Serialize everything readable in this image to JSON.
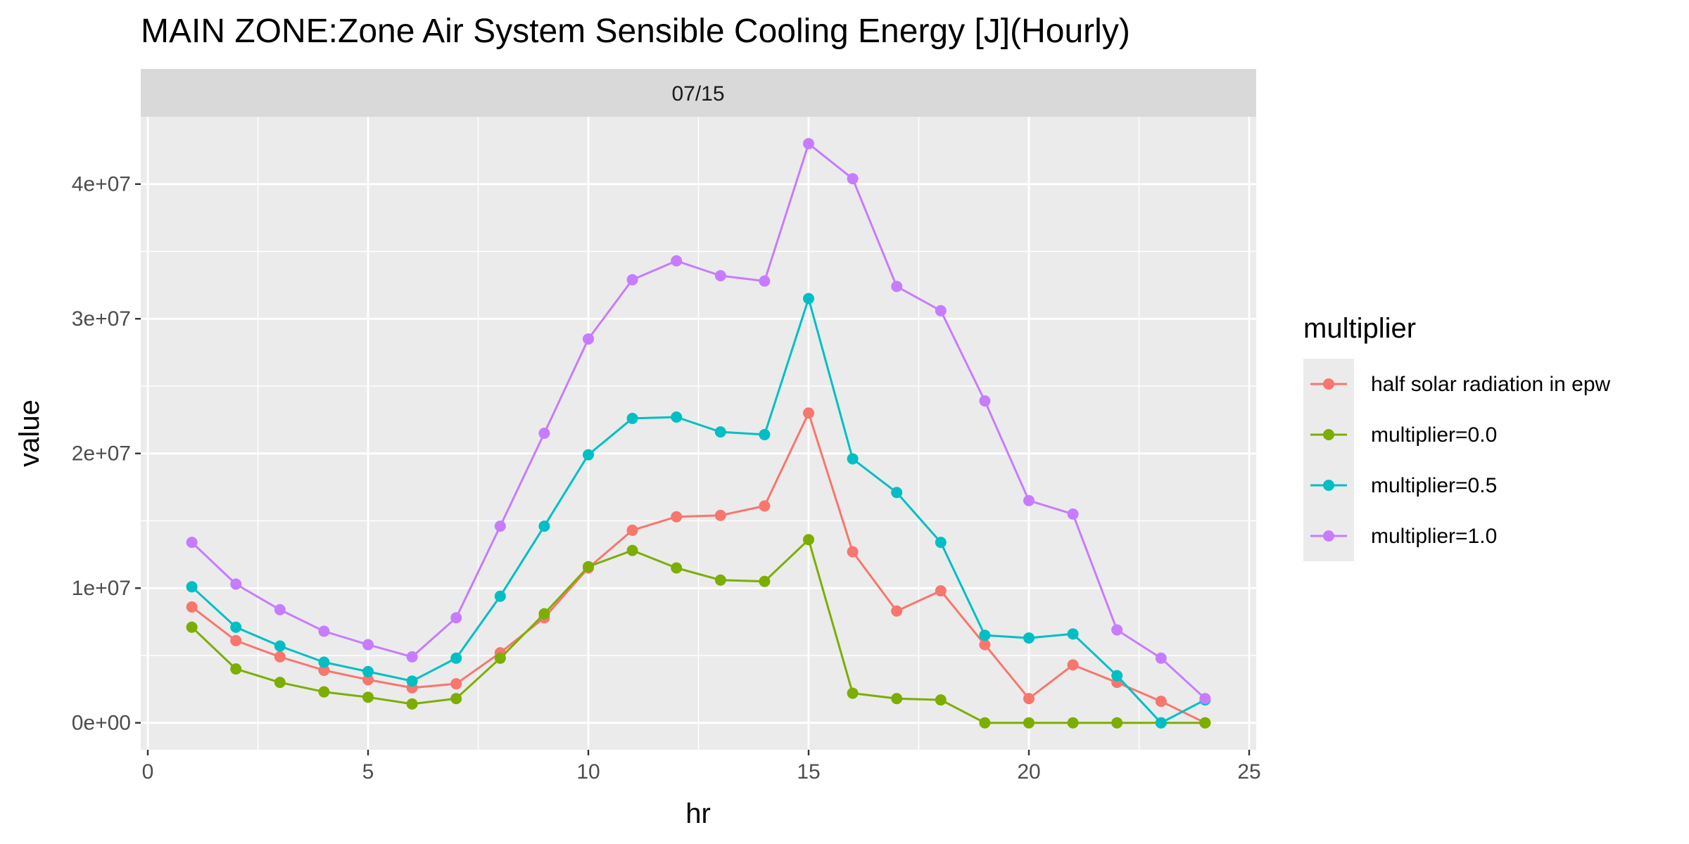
{
  "chart_data": {
    "type": "line",
    "title": "MAIN ZONE:Zone Air System Sensible Cooling Energy [J](Hourly)",
    "facet_label": "07/15",
    "xlabel": "hr",
    "ylabel": "value",
    "xlim": [
      0,
      25
    ],
    "ylim": [
      -2000000,
      45000000
    ],
    "x_ticks": [
      0,
      5,
      10,
      15,
      20,
      25
    ],
    "x_tick_labels": [
      "0",
      "5",
      "10",
      "15",
      "20",
      "25"
    ],
    "y_ticks": [
      0,
      10000000,
      20000000,
      30000000,
      40000000
    ],
    "y_tick_labels": [
      "0e+00",
      "1e+07",
      "2e+07",
      "3e+07",
      "4e+07"
    ],
    "grid": true,
    "legend_title": "multiplier",
    "legend_position": "right",
    "x": [
      1,
      2,
      3,
      4,
      5,
      6,
      7,
      8,
      9,
      10,
      11,
      12,
      13,
      14,
      15,
      16,
      17,
      18,
      19,
      20,
      21,
      22,
      23,
      24
    ],
    "series": [
      {
        "name": "half solar radiation in epw",
        "color": "#F8766D",
        "values": [
          8600000,
          6100000,
          4900000,
          3900000,
          3200000,
          2600000,
          2900000,
          5200000,
          7800000,
          11500000,
          14300000,
          15300000,
          15400000,
          16100000,
          23000000,
          12700000,
          8300000,
          9800000,
          5800000,
          1800000,
          4300000,
          3000000,
          1600000,
          0
        ]
      },
      {
        "name": "multiplier=0.0",
        "color": "#7CAE00",
        "values": [
          7100000,
          4000000,
          3000000,
          2300000,
          1900000,
          1400000,
          1800000,
          4800000,
          8100000,
          11600000,
          12800000,
          11500000,
          10600000,
          10500000,
          13600000,
          2200000,
          1800000,
          1700000,
          0,
          0,
          0,
          0,
          0,
          0
        ]
      },
      {
        "name": "multiplier=0.5",
        "color": "#00BFC4",
        "values": [
          10100000,
          7100000,
          5700000,
          4500000,
          3800000,
          3100000,
          4800000,
          9400000,
          14600000,
          19900000,
          22600000,
          22700000,
          21600000,
          21400000,
          31500000,
          19600000,
          17100000,
          13400000,
          6500000,
          6300000,
          6600000,
          3500000,
          0,
          1700000
        ]
      },
      {
        "name": "multiplier=1.0",
        "color": "#C77CFF",
        "values": [
          13400000,
          10300000,
          8400000,
          6800000,
          5800000,
          4900000,
          7800000,
          14600000,
          21500000,
          28500000,
          32900000,
          34300000,
          33200000,
          32800000,
          43000000,
          40400000,
          32400000,
          30600000,
          23900000,
          16500000,
          15500000,
          6900000,
          4800000,
          1800000
        ]
      }
    ]
  }
}
